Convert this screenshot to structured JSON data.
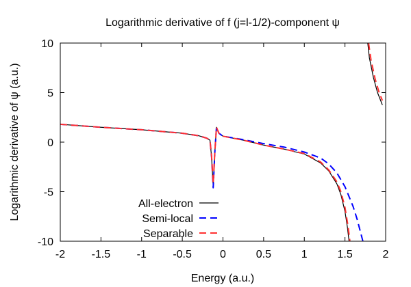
{
  "chart_data": {
    "type": "line",
    "title": "Logarithmic derivative of f (j=l-1/2)-component ψ",
    "xlabel": "Energy (a.u.)",
    "ylabel": "Logarithmic derivative of ψ (a.u.)",
    "xlim": [
      -2,
      2
    ],
    "ylim": [
      -10,
      10
    ],
    "xticks": [
      -2,
      -1.5,
      -1,
      -0.5,
      0,
      0.5,
      1,
      1.5,
      2
    ],
    "xtick_labels": [
      "-2",
      "-1.5",
      "-1",
      "-0.5",
      "0",
      "0.5",
      "1",
      "1.5",
      "2"
    ],
    "yticks": [
      -10,
      -5,
      0,
      5,
      10
    ],
    "ytick_labels": [
      "-10",
      "-5",
      "0",
      "5",
      "10"
    ],
    "grid": false,
    "legend_position": "bottom-left",
    "series": [
      {
        "name": "All-electron",
        "color": "#000000",
        "dash": "solid",
        "segments": [
          [
            [
              -2,
              1.8
            ],
            [
              -1.5,
              1.5
            ],
            [
              -1,
              1.25
            ],
            [
              -0.5,
              0.9
            ],
            [
              -0.3,
              0.65
            ],
            [
              -0.2,
              0.4
            ],
            [
              -0.16,
              0.2
            ],
            [
              -0.14,
              -1.5
            ],
            [
              -0.12,
              -4.5
            ],
            [
              -0.1,
              -1
            ],
            [
              -0.08,
              1.5
            ],
            [
              -0.05,
              0.9
            ],
            [
              0,
              0.6
            ],
            [
              0.25,
              0.2
            ],
            [
              0.5,
              -0.3
            ],
            [
              0.75,
              -0.7
            ],
            [
              1,
              -1.2
            ],
            [
              1.2,
              -2.1
            ],
            [
              1.3,
              -2.9
            ],
            [
              1.4,
              -4.2
            ],
            [
              1.45,
              -5.3
            ],
            [
              1.5,
              -7.0
            ],
            [
              1.53,
              -8.6
            ],
            [
              1.55,
              -10
            ]
          ],
          [
            [
              1.78,
              10
            ],
            [
              1.8,
              8.5
            ],
            [
              1.85,
              6.5
            ],
            [
              1.9,
              5.0
            ],
            [
              1.96,
              3.75
            ]
          ]
        ]
      },
      {
        "name": "Semi-local",
        "color": "#0000ff",
        "dash": "long-dash",
        "segments": [
          [
            [
              -2,
              1.8
            ],
            [
              -1.5,
              1.5
            ],
            [
              -1,
              1.25
            ],
            [
              -0.5,
              0.9
            ],
            [
              -0.3,
              0.65
            ],
            [
              -0.2,
              0.4
            ],
            [
              -0.16,
              0.2
            ],
            [
              -0.14,
              -1.5
            ],
            [
              -0.12,
              -4.6
            ],
            [
              -0.1,
              -1
            ],
            [
              -0.08,
              1.5
            ],
            [
              -0.05,
              0.9
            ],
            [
              0,
              0.6
            ],
            [
              0.25,
              0.25
            ],
            [
              0.5,
              -0.15
            ],
            [
              0.75,
              -0.5
            ],
            [
              1,
              -1.0
            ],
            [
              1.2,
              -1.6
            ],
            [
              1.3,
              -2.2
            ],
            [
              1.4,
              -3.1
            ],
            [
              1.5,
              -4.5
            ],
            [
              1.6,
              -6.5
            ],
            [
              1.65,
              -7.8
            ],
            [
              1.72,
              -10
            ]
          ]
        ]
      },
      {
        "name": "Separable",
        "color": "#ff3030",
        "dash": "long-dash",
        "segments": [
          [
            [
              -2,
              1.8
            ],
            [
              -1.5,
              1.5
            ],
            [
              -1,
              1.25
            ],
            [
              -0.5,
              0.9
            ],
            [
              -0.3,
              0.65
            ],
            [
              -0.2,
              0.4
            ],
            [
              -0.16,
              0.2
            ],
            [
              -0.14,
              -1.4
            ],
            [
              -0.12,
              -4.2
            ],
            [
              -0.1,
              -1
            ],
            [
              -0.08,
              1.5
            ],
            [
              -0.05,
              0.9
            ],
            [
              0,
              0.6
            ],
            [
              0.25,
              0.2
            ],
            [
              0.5,
              -0.3
            ],
            [
              0.75,
              -0.7
            ],
            [
              1,
              -1.15
            ],
            [
              1.2,
              -2.0
            ],
            [
              1.3,
              -2.8
            ],
            [
              1.4,
              -4.0
            ],
            [
              1.45,
              -5.0
            ],
            [
              1.5,
              -6.6
            ],
            [
              1.54,
              -8.6
            ],
            [
              1.56,
              -10
            ]
          ],
          [
            [
              1.79,
              10
            ],
            [
              1.82,
              8.3
            ],
            [
              1.87,
              6.4
            ],
            [
              1.92,
              5.0
            ],
            [
              1.96,
              4.2
            ]
          ]
        ]
      }
    ]
  }
}
